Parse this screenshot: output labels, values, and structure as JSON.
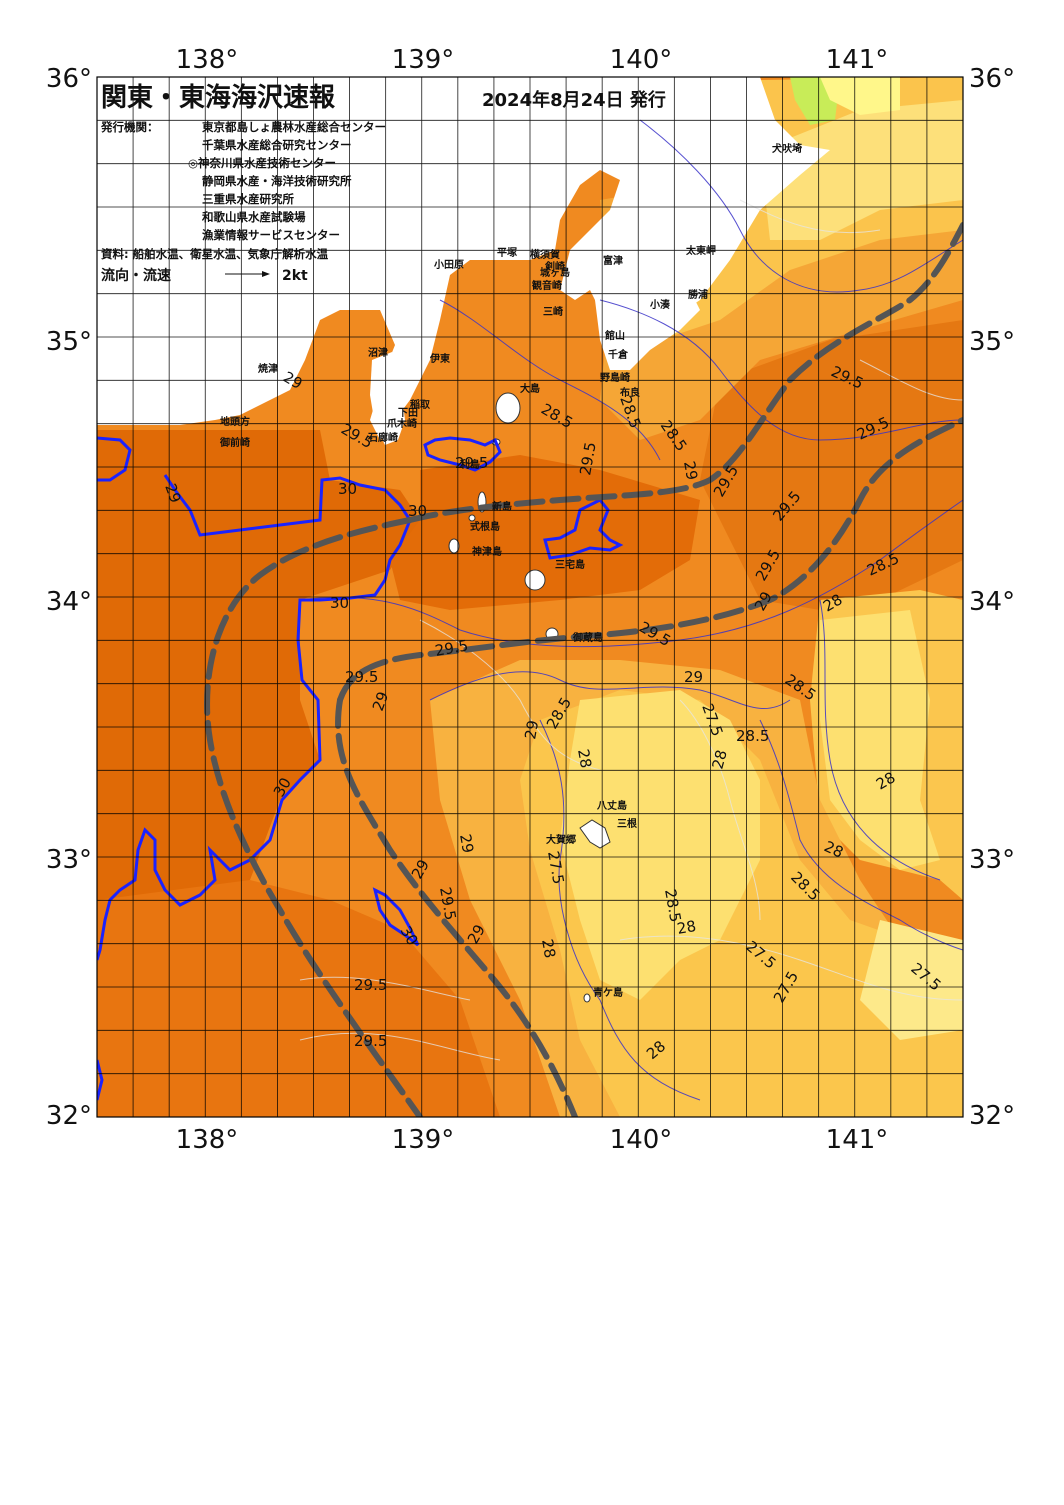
{
  "map": {
    "title": "関東・東海海沢速報",
    "issue_date": "2024年8月24日 発行",
    "issuer_label": "発行機関：",
    "issuers": [
      "東京都島しょ農林水産総合センター",
      "千葉県水産総合研究センター",
      "◎神奈川県水産技術センター",
      "静岡県水産・海洋技術研究所",
      "三重県水産研究所",
      "和歌山県水産試験場",
      "漁業情報サービスセンター"
    ],
    "source_text": "資料: 船舶水温、衛星水温、気象庁解析水温",
    "legend_label": "流向・流速",
    "legend_scale": "2kt",
    "lon_ticks": [
      "138°",
      "139°",
      "140°",
      "141°"
    ],
    "lat_ticks": [
      "36°",
      "35°",
      "34°",
      "33°",
      "32°"
    ],
    "colors": {
      "sst_27": "#ffe36a",
      "sst_27_5": "#fcd36a",
      "sst_28": "#fbc14a",
      "sst_28_5": "#f7a834",
      "sst_29": "#f59226",
      "sst_29_5": "#ec7b14",
      "sst_30": "#e06a06",
      "land": "#ffffff",
      "current_axis": "#555555",
      "isotherm_30": "#1a22ff",
      "coast_cold": "#c8ec58",
      "coast_purple": "#7a1aa0"
    },
    "isotherm_labels": [
      "29",
      "29.5",
      "29",
      "29.5",
      "30",
      "30",
      "30",
      "29.5",
      "29.5",
      "29",
      "28.5",
      "28.5",
      "29",
      "28.5",
      "29.5",
      "29.5",
      "29.5",
      "29.5",
      "28.5",
      "29.5",
      "29",
      "29.5",
      "28",
      "28.5",
      "29.5",
      "29",
      "28.5",
      "29",
      "27.5",
      "28.5",
      "28",
      "28",
      "28",
      "28.5",
      "29",
      "27.5",
      "28",
      "29",
      "29.5",
      "29",
      "28.5",
      "28",
      "28",
      "27.5",
      "27.5",
      "27.5",
      "28",
      "29.5",
      "29.5",
      "30",
      "30"
    ],
    "places": [
      "犬吠埼",
      "太東岬",
      "勝浦",
      "小湊",
      "富津",
      "千倉",
      "館山",
      "野島崎",
      "布良",
      "平塚",
      "横須賀",
      "城ヶ島",
      "観音崎",
      "剣崎",
      "三崎",
      "小田原",
      "伊東",
      "沼津",
      "焼津",
      "御前崎",
      "地頭方",
      "石廊崎",
      "下田",
      "爪木崎",
      "稲取",
      "大島",
      "利島",
      "新島",
      "式根島",
      "神津島",
      "三宅島",
      "御蔵島",
      "八丈島",
      "三根",
      "大賀郷",
      "青ケ島"
    ]
  }
}
